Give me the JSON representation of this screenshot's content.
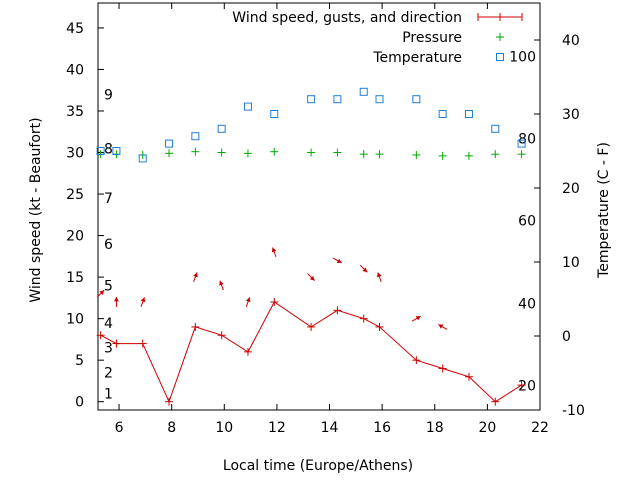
{
  "chart_data": {
    "type": "line",
    "xlabel": "Local time (Europe/Athens)",
    "ylabel": "Wind speed (kt - Beaufort)",
    "y2label": "Temperature (C - F)",
    "xlim": [
      5.2,
      22
    ],
    "ylim": [
      -1,
      48
    ],
    "y2lim": [
      -10,
      45
    ],
    "x_ticks": [
      6,
      8,
      10,
      12,
      14,
      16,
      18,
      20,
      22
    ],
    "y_ticks": [
      0,
      5,
      10,
      15,
      20,
      25,
      30,
      35,
      40,
      45
    ],
    "y2_ticks": [
      -10,
      0,
      10,
      20,
      30,
      40
    ],
    "beaufort_labels": [
      {
        "label": "1",
        "kt": 1
      },
      {
        "label": "2",
        "kt": 3.5
      },
      {
        "label": "3",
        "kt": 6.5
      },
      {
        "label": "4",
        "kt": 9.5
      },
      {
        "label": "5",
        "kt": 14
      },
      {
        "label": "6",
        "kt": 19
      },
      {
        "label": "7",
        "kt": 24.5
      },
      {
        "label": "8",
        "kt": 30.5
      },
      {
        "label": "9",
        "kt": 37
      }
    ],
    "fahrenheit_labels": [
      {
        "label": "20",
        "c": -6.7
      },
      {
        "label": "40",
        "c": 4.4
      },
      {
        "label": "60",
        "c": 15.6
      },
      {
        "label": "80",
        "c": 26.7
      },
      {
        "label": "100",
        "c": 37.8
      }
    ],
    "legend": {
      "position": "top-right",
      "entries": [
        "Wind speed, gusts, and direction",
        "Pressure",
        "Temperature"
      ]
    },
    "series": [
      {
        "name": "Wind speed, gusts, and direction",
        "color": "#cc0000",
        "x": [
          5.3,
          5.9,
          6.9,
          7.9,
          8.9,
          9.9,
          10.9,
          11.9,
          13.3,
          14.3,
          15.3,
          15.9,
          17.3,
          18.3,
          19.3,
          20.3,
          21.3
        ],
        "y": [
          8,
          7,
          7,
          0,
          9,
          8,
          6,
          12,
          9,
          11,
          10,
          9,
          5,
          4,
          3,
          0,
          2
        ],
        "arrow_dir_deg": [
          225,
          180,
          200,
          160,
          200,
          160,
          200,
          160,
          315,
          300,
          315,
          160,
          240,
          120,
          0,
          0,
          0
        ],
        "arrow_y": [
          13,
          12,
          12,
          0,
          15,
          14,
          12,
          18,
          15,
          17,
          16,
          15,
          10,
          9,
          0,
          0,
          0
        ],
        "show_arrow": [
          true,
          true,
          true,
          false,
          true,
          true,
          true,
          true,
          true,
          true,
          true,
          true,
          true,
          true,
          false,
          false,
          false
        ]
      },
      {
        "name": "Pressure",
        "color": "#00aa00",
        "x": [
          5.3,
          5.9,
          6.9,
          7.9,
          8.9,
          9.9,
          10.9,
          11.9,
          13.3,
          14.3,
          15.3,
          15.9,
          17.3,
          18.3,
          19.3,
          20.3,
          21.3
        ],
        "y": [
          29.8,
          29.8,
          29.7,
          29.9,
          30.1,
          30.0,
          29.9,
          30.1,
          30.0,
          30.0,
          29.8,
          29.8,
          29.7,
          29.6,
          29.6,
          29.8,
          29.8
        ]
      },
      {
        "name": "Temperature",
        "color": "#1e7fd6",
        "axis": "y2",
        "x": [
          5.3,
          5.9,
          6.9,
          7.9,
          8.9,
          9.9,
          10.9,
          11.9,
          13.3,
          14.3,
          15.3,
          15.9,
          17.3,
          18.3,
          19.3,
          20.3,
          21.3
        ],
        "y": [
          25,
          25,
          24,
          26,
          27,
          28,
          31,
          30,
          32,
          32,
          33,
          32,
          32,
          30,
          30,
          28,
          26
        ]
      }
    ]
  }
}
